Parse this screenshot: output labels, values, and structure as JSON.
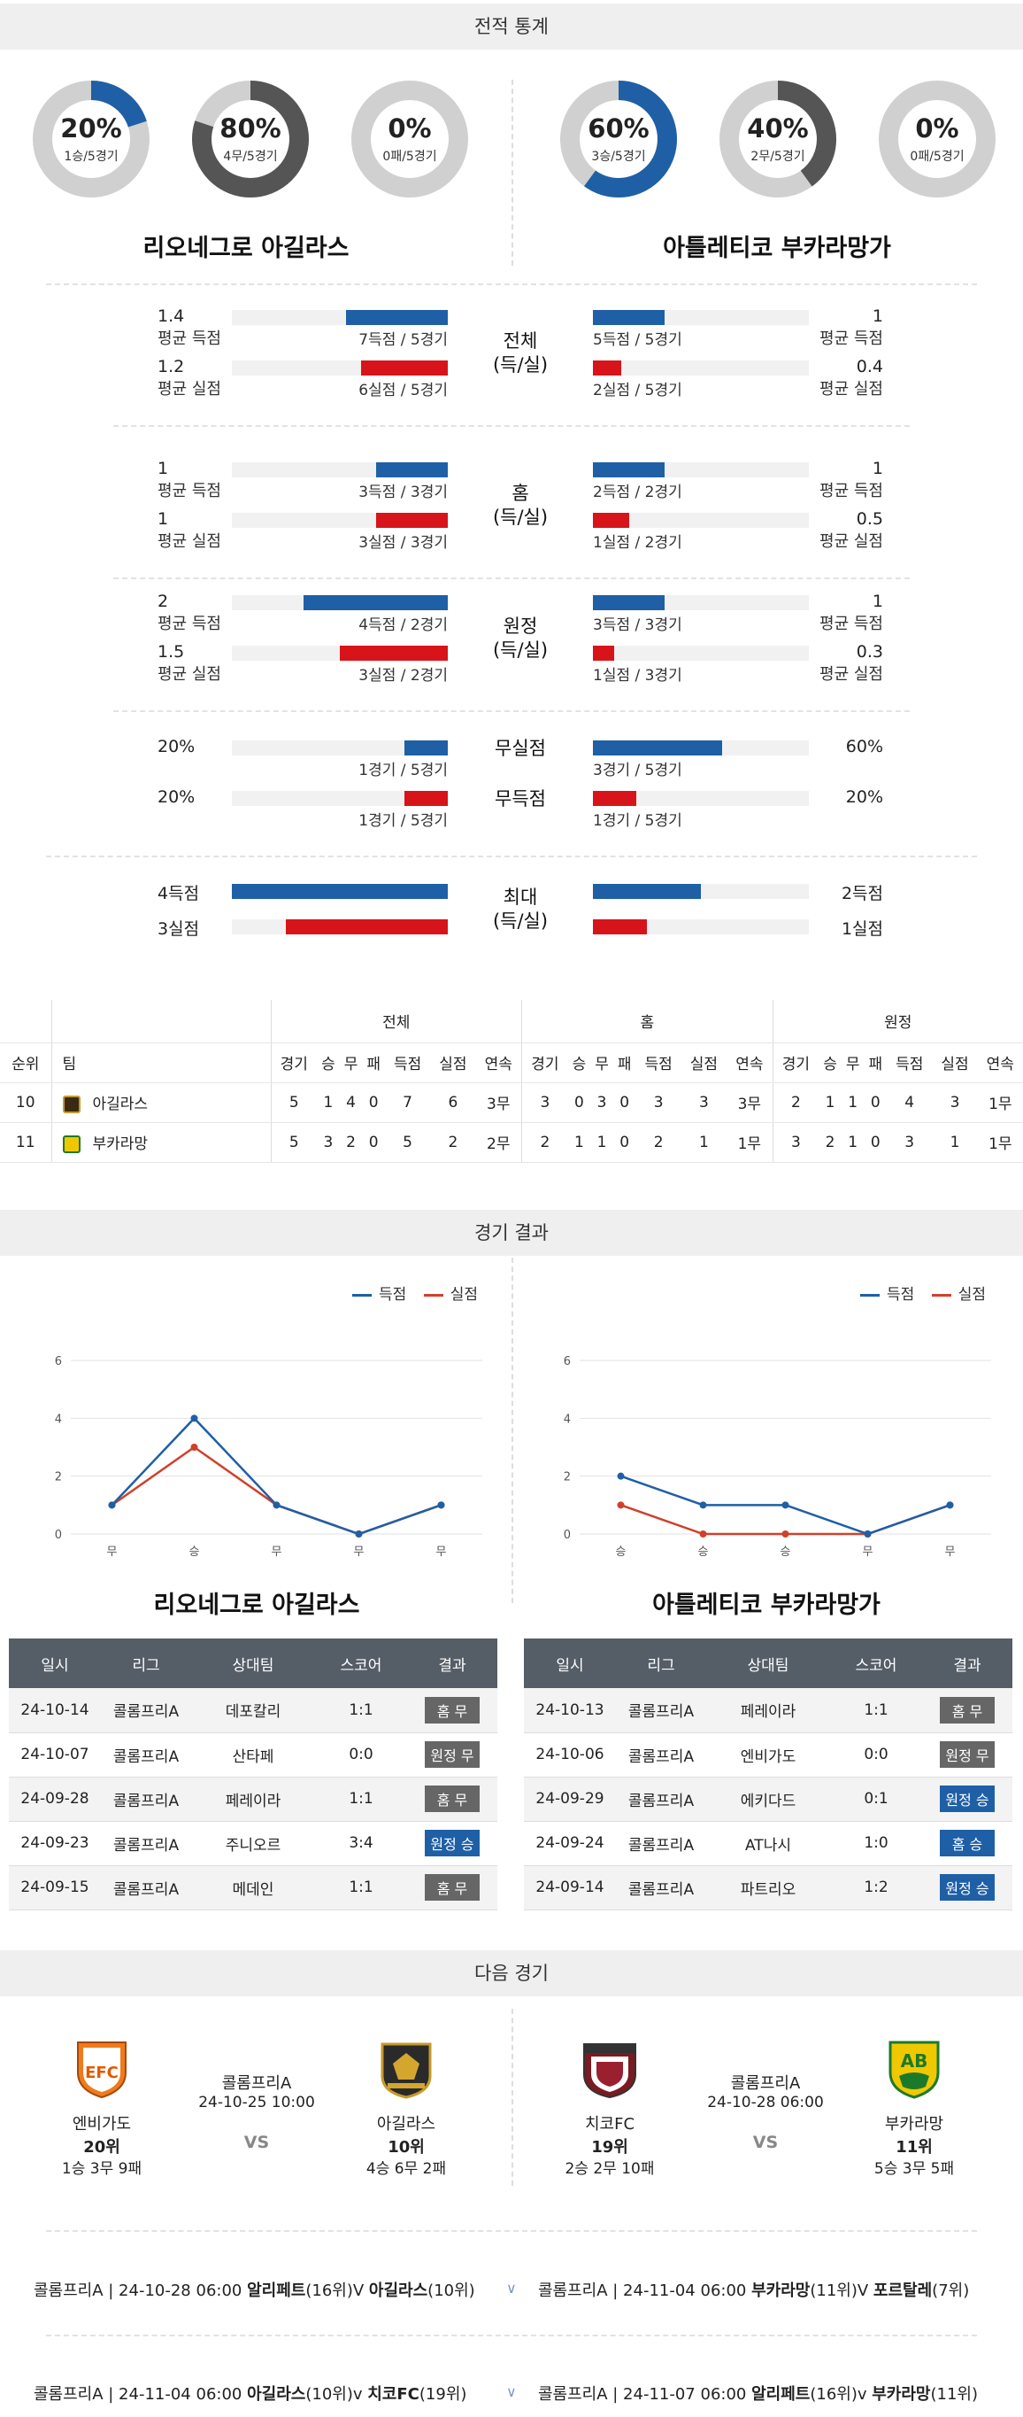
{
  "sections": {
    "stats_title": "전적 통계",
    "results_title": "경기 결과",
    "next_title": "다음 경기"
  },
  "teams": {
    "left": "리오네그로 아길라스",
    "right": "아틀레티코 부카라망가"
  },
  "donuts": {
    "left": [
      {
        "pct": "20%",
        "sub": "1승/5경기",
        "fraction": 0.2,
        "color": "#1f5fa6"
      },
      {
        "pct": "80%",
        "sub": "4무/5경기",
        "fraction": 0.8,
        "color": "#555555"
      },
      {
        "pct": "0%",
        "sub": "0패/5경기",
        "fraction": 0,
        "color": "#cfcfcf"
      }
    ],
    "right": [
      {
        "pct": "60%",
        "sub": "3승/5경기",
        "fraction": 0.6,
        "color": "#1f5fa6"
      },
      {
        "pct": "40%",
        "sub": "2무/5경기",
        "fraction": 0.4,
        "color": "#555555"
      },
      {
        "pct": "0%",
        "sub": "0패/5경기",
        "fraction": 0,
        "color": "#cfcfcf"
      }
    ]
  },
  "stat_groups": [
    {
      "label1": "전체",
      "label2": "(득/실)",
      "left": [
        {
          "val": "1.4",
          "lab": "평균 득점",
          "cap": "7득점 / 5경기",
          "fraction": 0.47
        },
        {
          "val": "1.2",
          "lab": "평균 실점",
          "cap": "6실점 / 5경기",
          "fraction": 0.4
        }
      ],
      "right": [
        {
          "val": "1",
          "lab": "평균 득점",
          "cap": "5득점 / 5경기",
          "fraction": 0.33
        },
        {
          "val": "0.4",
          "lab": "평균 실점",
          "cap": "2실점 / 5경기",
          "fraction": 0.13
        }
      ]
    },
    {
      "label1": "홈",
      "label2": "(득/실)",
      "left": [
        {
          "val": "1",
          "lab": "평균 득점",
          "cap": "3득점 / 3경기",
          "fraction": 0.33
        },
        {
          "val": "1",
          "lab": "평균 실점",
          "cap": "3실점 / 3경기",
          "fraction": 0.33
        }
      ],
      "right": [
        {
          "val": "1",
          "lab": "평균 득점",
          "cap": "2득점 / 2경기",
          "fraction": 0.33
        },
        {
          "val": "0.5",
          "lab": "평균 실점",
          "cap": "1실점 / 2경기",
          "fraction": 0.17
        }
      ]
    },
    {
      "label1": "원정",
      "label2": "(득/실)",
      "left": [
        {
          "val": "2",
          "lab": "평균 득점",
          "cap": "4득점 / 2경기",
          "fraction": 0.67
        },
        {
          "val": "1.5",
          "lab": "평균 실점",
          "cap": "3실점 / 2경기",
          "fraction": 0.5
        }
      ],
      "right": [
        {
          "val": "1",
          "lab": "평균 득점",
          "cap": "3득점 / 3경기",
          "fraction": 0.33
        },
        {
          "val": "0.3",
          "lab": "평균 실점",
          "cap": "1실점 / 3경기",
          "fraction": 0.1
        }
      ]
    }
  ],
  "pct_groups": {
    "left": [
      {
        "val": "20%",
        "cap": "1경기 / 5경기",
        "fraction": 0.2
      },
      {
        "val": "20%",
        "cap": "1경기 / 5경기",
        "fraction": 0.2
      }
    ],
    "right": [
      {
        "val": "60%",
        "cap": "3경기 / 5경기",
        "fraction": 0.6
      },
      {
        "val": "20%",
        "cap": "1경기 / 5경기",
        "fraction": 0.2
      }
    ],
    "label1": "무실점",
    "label2": "무득점"
  },
  "max_group": {
    "label1": "최대",
    "label2": "(득/실)",
    "left": [
      {
        "val": "4득점",
        "fraction": 1.0
      },
      {
        "val": "3실점",
        "fraction": 0.75
      }
    ],
    "right": [
      {
        "val": "2득점",
        "fraction": 0.5
      },
      {
        "val": "1실점",
        "fraction": 0.25
      }
    ]
  },
  "standings": {
    "groups": [
      "전체",
      "홈",
      "원정"
    ],
    "headers": [
      "순위",
      "팀",
      "경기",
      "승",
      "무",
      "패",
      "득점",
      "실점",
      "연속"
    ],
    "rows": [
      {
        "rank": "10",
        "team": "아길라스",
        "all": [
          "5",
          "1",
          "4",
          "0",
          "7",
          "6",
          "3무"
        ],
        "home": [
          "3",
          "0",
          "3",
          "0",
          "3",
          "3",
          "3무"
        ],
        "away": [
          "2",
          "1",
          "1",
          "0",
          "4",
          "3",
          "1무"
        ]
      },
      {
        "rank": "11",
        "team": "부카라망",
        "all": [
          "5",
          "3",
          "2",
          "0",
          "5",
          "2",
          "2무"
        ],
        "home": [
          "2",
          "1",
          "1",
          "0",
          "2",
          "1",
          "1무"
        ],
        "away": [
          "3",
          "2",
          "1",
          "0",
          "3",
          "1",
          "1무"
        ]
      }
    ]
  },
  "legend": {
    "scored": "득점",
    "conceded": "실점",
    "scored_color": "#1f5fa6",
    "conceded_color": "#d0402a"
  },
  "chart_data": [
    {
      "type": "line",
      "x": [
        "무",
        "승",
        "무",
        "무",
        "무"
      ],
      "ylim": [
        0,
        6
      ],
      "yticks": [
        "0",
        "2",
        "4",
        "6"
      ],
      "series": [
        {
          "name": "득점",
          "values": [
            1,
            4,
            1,
            0,
            1
          ]
        },
        {
          "name": "실점",
          "values": [
            1,
            3,
            1,
            0,
            1
          ]
        }
      ]
    },
    {
      "type": "line",
      "x": [
        "승",
        "승",
        "승",
        "무",
        "무"
      ],
      "ylim": [
        0,
        6
      ],
      "yticks": [
        "0",
        "2",
        "4",
        "6"
      ],
      "series": [
        {
          "name": "득점",
          "values": [
            2,
            1,
            1,
            0,
            1
          ]
        },
        {
          "name": "실점",
          "values": [
            1,
            0,
            0,
            0,
            1
          ]
        }
      ]
    }
  ],
  "result_headers": [
    "일시",
    "리그",
    "상대팀",
    "스코어",
    "결과"
  ],
  "results": {
    "left": [
      {
        "date": "24-10-14",
        "league": "콜롬프리A",
        "opp": "데포칼리",
        "score": "1:1",
        "result": "홈 무",
        "color": "gray"
      },
      {
        "date": "24-10-07",
        "league": "콜롬프리A",
        "opp": "산타페",
        "score": "0:0",
        "result": "원정 무",
        "color": "gray"
      },
      {
        "date": "24-09-28",
        "league": "콜롬프리A",
        "opp": "페레이라",
        "score": "1:1",
        "result": "홈 무",
        "color": "gray"
      },
      {
        "date": "24-09-23",
        "league": "콜롬프리A",
        "opp": "주니오르",
        "score": "3:4",
        "result": "원정 승",
        "color": "blue"
      },
      {
        "date": "24-09-15",
        "league": "콜롬프리A",
        "opp": "메데인",
        "score": "1:1",
        "result": "홈 무",
        "color": "gray"
      }
    ],
    "right": [
      {
        "date": "24-10-13",
        "league": "콜롬프리A",
        "opp": "페레이라",
        "score": "1:1",
        "result": "홈 무",
        "color": "gray"
      },
      {
        "date": "24-10-06",
        "league": "콜롬프리A",
        "opp": "엔비가도",
        "score": "0:0",
        "result": "원정 무",
        "color": "gray"
      },
      {
        "date": "24-09-29",
        "league": "콜롬프리A",
        "opp": "에키다드",
        "score": "0:1",
        "result": "원정 승",
        "color": "blue"
      },
      {
        "date": "24-09-24",
        "league": "콜롬프리A",
        "opp": "AT나시",
        "score": "1:0",
        "result": "홈 승",
        "color": "blue"
      },
      {
        "date": "24-09-14",
        "league": "콜롬프리A",
        "opp": "파트리오",
        "score": "1:2",
        "result": "원정 승",
        "color": "blue"
      }
    ]
  },
  "next_games": {
    "left": {
      "league": "콜롬프리A",
      "datetime": "24-10-25 10:00",
      "vs": "VS",
      "home": {
        "name": "엔비가도",
        "rank": "20위",
        "record": "1승 3무 9패",
        "logo_text": "EFC"
      },
      "away": {
        "name": "아길라스",
        "rank": "10위",
        "record": "4승 6무 2패"
      }
    },
    "right": {
      "league": "콜롬프리A",
      "datetime": "24-10-28 06:00",
      "vs": "VS",
      "home": {
        "name": "치코FC",
        "rank": "19위",
        "record": "2승 2무 10패"
      },
      "away": {
        "name": "부카라망",
        "rank": "11위",
        "record": "5승 3무 5패",
        "logo_text": "AB"
      }
    }
  },
  "upcoming": {
    "row1": {
      "left": {
        "prefix": "콜롬프리A | 24-10-28 06:00",
        "home": "알리페트",
        "home_rank": "(16위)",
        "vs": "V",
        "away": "아길라스",
        "away_rank": "(10위)"
      },
      "right": {
        "prefix": "콜롬프리A | 24-11-04 06:00",
        "home": "부카라망",
        "home_rank": "(11위)",
        "vs": "V",
        "away": "포르탈레",
        "away_rank": "(7위)"
      }
    },
    "row2": {
      "left": {
        "prefix": "콜롬프리A | 24-11-04 06:00",
        "home": "아길라스",
        "home_rank": "(10위)",
        "vs": "v",
        "away": "치코FC",
        "away_rank": "(19위)"
      },
      "right": {
        "prefix": "콜롬프리A | 24-11-07 06:00",
        "home": "알리페트",
        "home_rank": "(16위)",
        "vs": "v",
        "away": "부카라망",
        "away_rank": "(11위)"
      }
    }
  }
}
